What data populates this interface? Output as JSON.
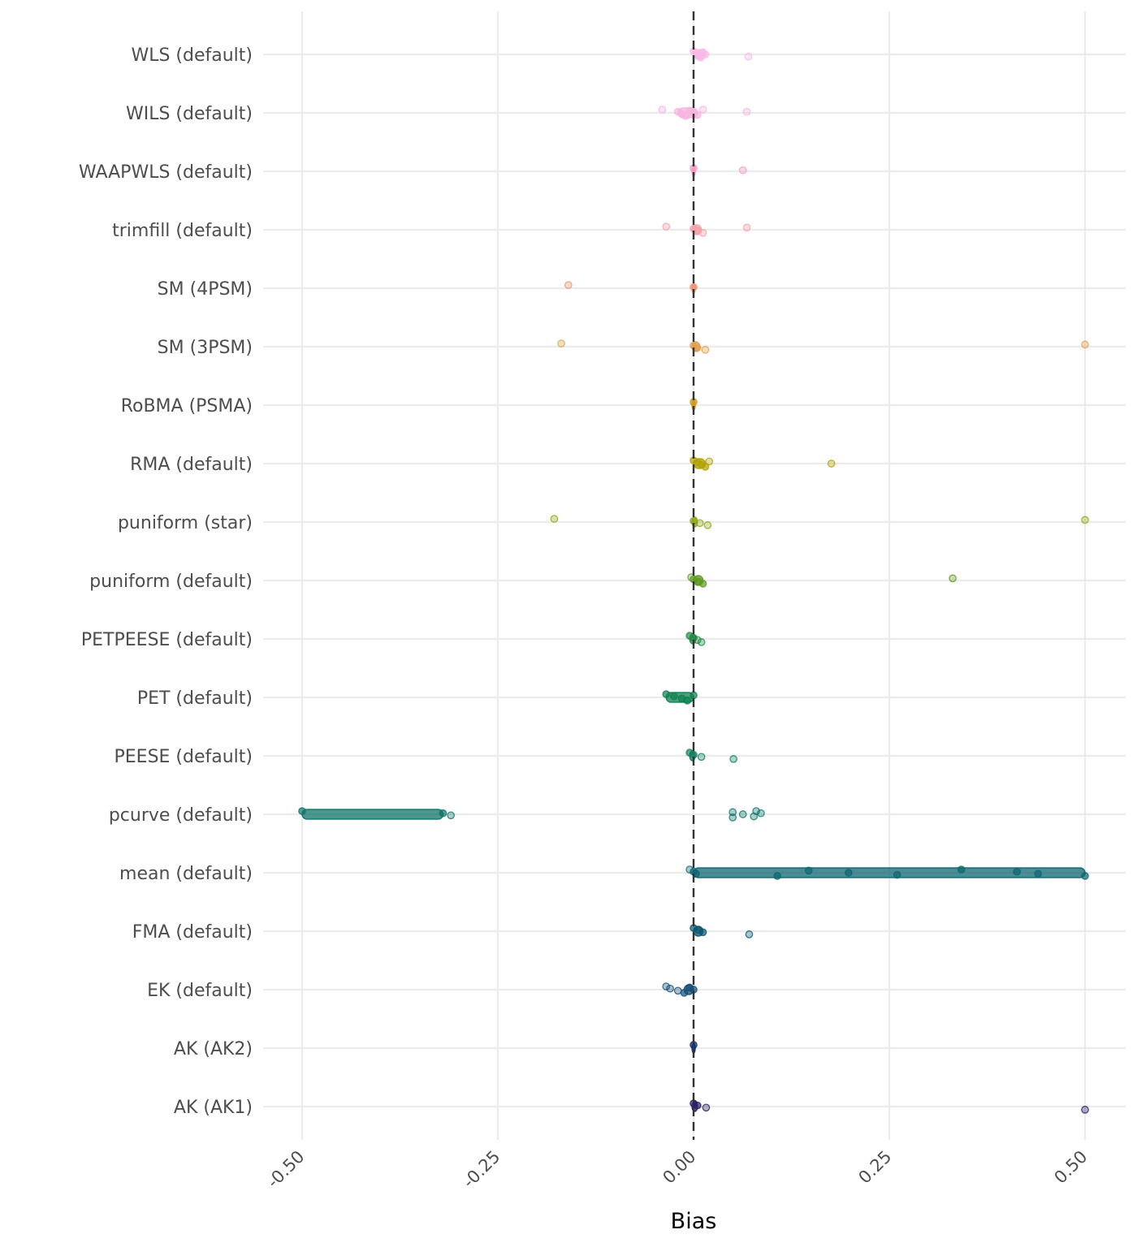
{
  "chart_data": {
    "type": "scatter",
    "subtype": "jittered strip plot with range bars",
    "title": "",
    "xlabel": "Bias",
    "ylabel": "",
    "xlim": [
      -0.5,
      0.5
    ],
    "x_ticks": [
      -0.5,
      -0.25,
      0.0,
      0.25,
      0.5
    ],
    "x_tick_labels": [
      "-0.50",
      "-0.25",
      "0.00",
      "0.25",
      "0.50"
    ],
    "x_tick_label_rotation_deg": 45,
    "grid": true,
    "reference_line": {
      "x": 0.0,
      "style": "dashed",
      "color": "#333333"
    },
    "legend": "none",
    "categories": [
      "WLS (default)",
      "WILS (default)",
      "WAAPWLS (default)",
      "trimfill (default)",
      "SM (4PSM)",
      "SM (3PSM)",
      "RoBMA (PSMA)",
      "RMA (default)",
      "puniform (star)",
      "puniform (default)",
      "PETPEESE (default)",
      "PET (default)",
      "PEESE (default)",
      "pcurve (default)",
      "mean (default)",
      "FMA (default)",
      "EK (default)",
      "AK (AK2)",
      "AK (AK1)"
    ],
    "series": [
      {
        "name": "WLS (default)",
        "color": "#f9b8e6",
        "core_range": [
          0.0,
          0.015
        ],
        "points": [
          0.0,
          0.003,
          0.006,
          0.009,
          0.012,
          0.015,
          0.07
        ]
      },
      {
        "name": "WILS (default)",
        "color": "#f7b3e0",
        "core_range": [
          -0.02,
          0.005
        ],
        "points": [
          -0.04,
          -0.02,
          -0.015,
          -0.01,
          -0.005,
          0.0,
          0.005,
          0.012,
          0.068
        ]
      },
      {
        "name": "WAAPWLS (default)",
        "color": "#f49ac2",
        "core_range": [
          -0.002,
          0.002
        ],
        "points": [
          0.0,
          0.063
        ]
      },
      {
        "name": "trimfill (default)",
        "color": "#f4a0a8",
        "core_range": [
          -0.002,
          0.01
        ],
        "points": [
          -0.035,
          0.0,
          0.005,
          0.012,
          0.068
        ]
      },
      {
        "name": "SM (4PSM)",
        "color": "#ec9272",
        "core_range": [
          -0.002,
          0.002
        ],
        "points": [
          -0.16,
          0.0
        ]
      },
      {
        "name": "SM (3PSM)",
        "color": "#e0a050",
        "core_range": [
          -0.002,
          0.008
        ],
        "points": [
          -0.169,
          0.0,
          0.005,
          0.015,
          0.5
        ]
      },
      {
        "name": "RoBMA (PSMA)",
        "color": "#c99a16",
        "core_range": [
          -0.002,
          0.002
        ],
        "points": [
          0.0
        ]
      },
      {
        "name": "RMA (default)",
        "color": "#b0a300",
        "core_range": [
          0.0,
          0.015
        ],
        "points": [
          0.0,
          0.005,
          0.01,
          0.015,
          0.02,
          0.176
        ]
      },
      {
        "name": "puniform (star)",
        "color": "#8ea81a",
        "core_range": [
          -0.002,
          0.005
        ],
        "points": [
          -0.178,
          0.0,
          0.008,
          0.018,
          0.5
        ]
      },
      {
        "name": "puniform (default)",
        "color": "#5e9a20",
        "core_range": [
          0.0,
          0.012
        ],
        "points": [
          -0.003,
          0.0,
          0.006,
          0.012,
          0.331
        ]
      },
      {
        "name": "PETPEESE (default)",
        "color": "#238a45",
        "core_range": [
          -0.005,
          0.003
        ],
        "points": [
          -0.005,
          0.0,
          0.005,
          0.01
        ]
      },
      {
        "name": "PET (default)",
        "color": "#0e8050",
        "core_range": [
          -0.035,
          0.0
        ],
        "points": [
          -0.035,
          -0.025,
          -0.015,
          -0.008,
          0.0
        ]
      },
      {
        "name": "PEESE (default)",
        "color": "#12805f",
        "core_range": [
          -0.005,
          0.002
        ],
        "points": [
          -0.005,
          0.0,
          0.01,
          0.051
        ]
      },
      {
        "name": "pcurve (default)",
        "color": "#0d7468",
        "core_range": [
          -0.5,
          -0.32
        ],
        "points": [
          -0.5,
          -0.32,
          -0.31,
          0.05,
          0.05,
          0.063,
          0.077,
          0.08,
          0.086
        ]
      },
      {
        "name": "mean (default)",
        "color": "#0d6670",
        "core_range": [
          0.0,
          0.5
        ],
        "points": [
          -0.005,
          0.0,
          0.003,
          0.107,
          0.147,
          0.198,
          0.26,
          0.342,
          0.413,
          0.44,
          0.5
        ]
      },
      {
        "name": "FMA (default)",
        "color": "#0b5772",
        "core_range": [
          0.0,
          0.012
        ],
        "points": [
          0.0,
          0.006,
          0.012,
          0.071
        ]
      },
      {
        "name": "EK (default)",
        "color": "#174e74",
        "core_range": [
          -0.012,
          0.0
        ],
        "points": [
          -0.035,
          -0.03,
          -0.02,
          -0.012,
          -0.005,
          0.0
        ]
      },
      {
        "name": "AK (AK2)",
        "color": "#0d2f65",
        "core_range": [
          -0.002,
          0.002
        ],
        "points": [
          0.0
        ]
      },
      {
        "name": "AK (AK1)",
        "color": "#2a1c62",
        "core_range": [
          -0.002,
          0.005
        ],
        "points": [
          0.0,
          0.005,
          0.016,
          0.5
        ]
      }
    ]
  }
}
